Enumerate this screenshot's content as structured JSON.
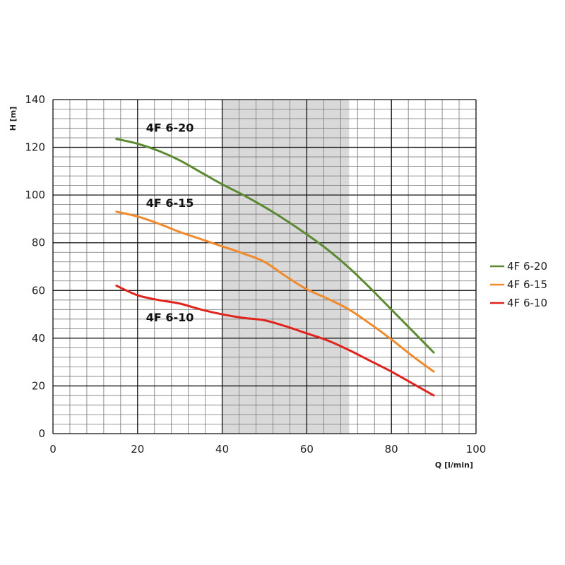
{
  "chart_data": {
    "type": "line",
    "xlabel": "Q [l/min]",
    "ylabel": "H [m]",
    "xlim": [
      0,
      100
    ],
    "ylim": [
      0,
      140
    ],
    "xticks": [
      "0",
      "20",
      "40",
      "60",
      "80",
      "100"
    ],
    "yticks": [
      "0",
      "20",
      "40",
      "60",
      "80",
      "100",
      "120",
      "140"
    ],
    "grid": true,
    "legend_position": "right",
    "highlight_band": {
      "x_range": [
        40,
        70
      ],
      "color": "#d9d9d9"
    },
    "series": [
      {
        "name": "4F 6-20",
        "color": "#5b8a32",
        "label": "4F 6-20",
        "x": [
          15,
          20,
          25,
          30,
          35,
          40,
          45,
          50,
          55,
          60,
          65,
          70,
          75,
          80,
          85,
          90
        ],
        "y": [
          123.5,
          121.5,
          118.5,
          114.5,
          109.5,
          104.5,
          100,
          95,
          89.5,
          83.5,
          77,
          69.5,
          61,
          52,
          43,
          34
        ]
      },
      {
        "name": "4F 6-15",
        "color": "#f08a2c",
        "label": "4F 6-15",
        "x": [
          15,
          20,
          25,
          30,
          35,
          40,
          45,
          50,
          55,
          60,
          65,
          70,
          75,
          80,
          85,
          90
        ],
        "y": [
          93,
          91,
          88,
          84.5,
          81.5,
          78.5,
          75.5,
          72,
          66,
          60.5,
          56.5,
          52,
          46,
          39.5,
          32.5,
          26
        ]
      },
      {
        "name": "4F 6-10",
        "color": "#e0231c",
        "label": "4F 6-10",
        "x": [
          15,
          20,
          25,
          30,
          35,
          40,
          45,
          50,
          55,
          60,
          65,
          70,
          75,
          80,
          85,
          90
        ],
        "y": [
          62,
          58,
          56,
          54.5,
          52,
          50,
          48.5,
          47.5,
          45,
          42,
          39,
          35,
          30.5,
          26,
          21,
          16
        ]
      }
    ]
  }
}
